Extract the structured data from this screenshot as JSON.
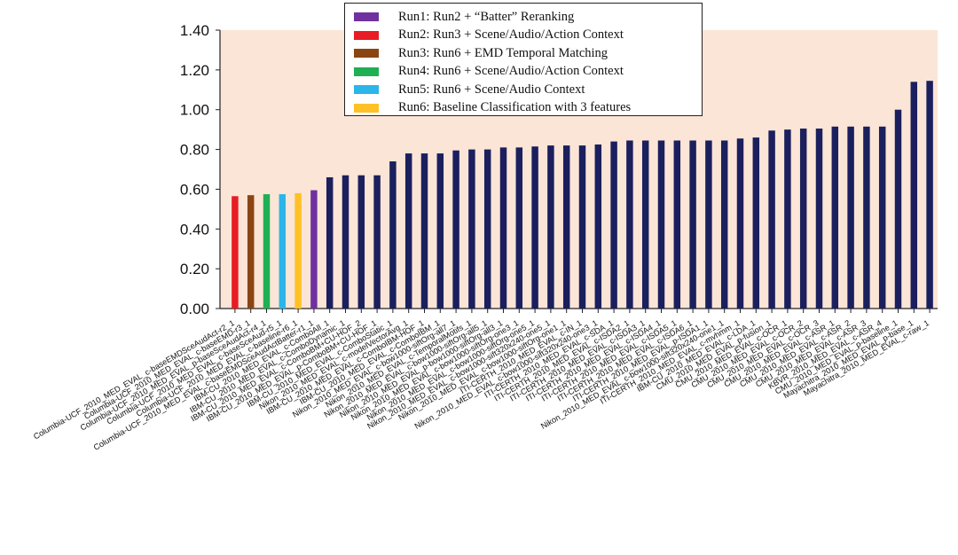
{
  "chart_data": {
    "type": "bar",
    "title": "",
    "xlabel": "",
    "ylabel": "",
    "ylim": [
      0,
      1.4
    ],
    "yticks": [
      "0.00",
      "0.20",
      "0.40",
      "0.60",
      "0.80",
      "1.00",
      "1.20",
      "1.40"
    ],
    "legend_position": "top-center",
    "legend": [
      {
        "label": "Run1: Run2 + “Batter” Reranking",
        "color": "#7030A0"
      },
      {
        "label": "Run2: Run3 + Scene/Audio/Action Context",
        "color": "#E81C24"
      },
      {
        "label": "Run3: Run6 + EMD Temporal Matching",
        "color": "#8B4513"
      },
      {
        "label": "Run4: Run6 + Scene/Audio/Action Context",
        "color": "#1FAF55"
      },
      {
        "label": "Run5: Run6 + Scene/Audio Context",
        "color": "#2BB5E8"
      },
      {
        "label": "Run6: Baseline Classification with 3 features",
        "color": "#FFC125"
      }
    ],
    "categories": [
      "Columbia-UCF_2010_MED_EVAL_c-baseEMDSceAudAct-r2_1",
      "Columbia-UCF_2010_MED_EVAL_c-baseEMD-r3_1",
      "Columbia-UCF_2010_MED_EVAL_p-baseSceAudAct-r4_1",
      "Columbia-UCF_2010_MED_EVAL_c-baseSceAud-r5_1",
      "Columbia-UCF_2010_MED_EVAL_c-baseline-r6_1",
      "Columbia-UCF_2010_MED_EVAL_c-baseEMDSceAudActBatter-r1_1",
      "IBM-CU_2010_MED_EVAL_c-ComboAll_1",
      "IBM-CU_2010_MED_EVAL_c-ComboDynamic_1",
      "IBM-CU_2010_MED_EVAL_c-ComboBM+CU-HOF_2",
      "IBM-CU_2010_MED_EVAL_p-ComboBM+CU-HOF_1",
      "IBM-CU_2010_MED_EVAL_c-ComboStatic_1",
      "Nikon_2010_MED_EVAL_c-modelVectorAvg_1",
      "IBM-CU_2010_MED_EVAL_c-ComboIBM-HOF_1",
      "IBM-CU_2010_MED_EVAL_c-ComboIBM_1",
      "Nikon_2010_MED_EVAL_c-bow1000-siftOrg-all7_1",
      "Nikon_2010_MED_EVAL_c-TemporalMotifs_1",
      "Nikon_2010_MED_EVAL_c-bow1000-siftOrg-all5_1",
      "Nikon_2010_MED_EVAL_p-bow1000-siftOrg-all3_1",
      "Nikon_2010_MED_EVAL_c-bow1000-siftOrg-one3_1",
      "Nikon_2010_MED_EVAL_c-bow1000-siftOrg-one5_1",
      "Nikon_2010_MED_EVAL_c-bow1000-sift320x240-one5_1",
      "Nikon_2010_MED_EVAL_c-bow1000-siftOrg-one1_1",
      "ITI-CERTH_2010_MED_EVAL_c-IN_1",
      "Nikon_2010_MED_EVAL_c-bow1000-sift320x240-one3_1",
      "ITI-CERTH_2010_MED_EVAL_c-SDA_1",
      "ITI-CERTH_2010_MED_EVAL_c-ISDA2_1",
      "ITI-CERTH_2010_MED_EVAL_c-ISDA3_1",
      "ITI-CERTH_2010_MED_EVAL_c-ISDA4_1",
      "ITI-CERTH_2010_MED_EVAL_c-ISDA5_1",
      "ITI-CERTH_2010_MED_EVAL_c-ISDA6_1",
      "ITI-CERTH_2010_MED_EVAL_p-ISDA1_1",
      "Nikon_2010_MED_EVAL_c-bow1000-sift320x240-one1_1",
      "ITI-CERTH_2010_MED_EVAL_c-mvhmm_1",
      "IBM-CU_2010_MED_EVAL_c-LDA_1",
      "CMU_2010_MED_EVAL_p-fusion_1",
      "CMU_2010_MED_EVAL_c-OCR_1",
      "CMU_2010_MED_EVAL_c-OCR_2",
      "CMU_2010_MED_EVAL_c-OCR_3",
      "CMU_2010_MED_EVAL_c-ASR_1",
      "CMU_2010_MED_EVAL_c-ASR_2",
      "CMU_2010_MED_EVAL_c-ASR_3",
      "KBVR_2010_MED_EVAL_c-ASR_4",
      "CMU_2010_MED_EVAL_p-baseline_1",
      "Mayachitra_2010_MED_EVAL_p-base_1",
      "Mayachitra_2010_MED_EVAL_c-raw_1"
    ],
    "values": [
      0.565,
      0.57,
      0.575,
      0.575,
      0.58,
      0.595,
      0.66,
      0.67,
      0.67,
      0.67,
      0.74,
      0.78,
      0.78,
      0.78,
      0.795,
      0.8,
      0.8,
      0.81,
      0.81,
      0.815,
      0.82,
      0.82,
      0.82,
      0.825,
      0.84,
      0.845,
      0.845,
      0.845,
      0.845,
      0.845,
      0.845,
      0.845,
      0.855,
      0.86,
      0.895,
      0.9,
      0.905,
      0.905,
      0.915,
      0.915,
      0.915,
      0.915,
      1.0,
      1.14,
      1.145
    ],
    "bar_colors": [
      "#E81C24",
      "#8B4513",
      "#1FAF55",
      "#2BB5E8",
      "#FFC125",
      "#7030A0"
    ],
    "default_bar_color": "#1B1F5E",
    "plot_background": "#FBE5D6"
  }
}
